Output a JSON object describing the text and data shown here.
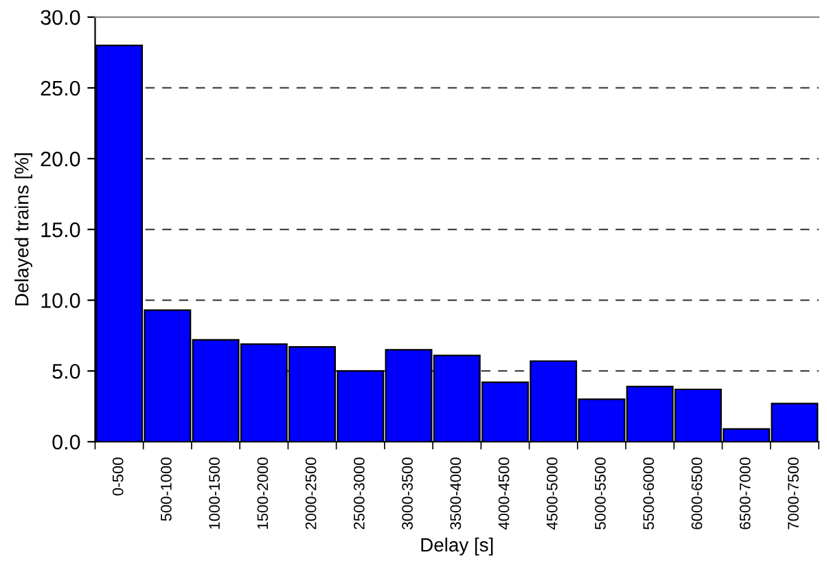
{
  "chart_data": {
    "type": "bar",
    "xlabel": "Delay [s]",
    "ylabel": "Delayed trains [%]",
    "categories": [
      "0-500",
      "500-1000",
      "1000-1500",
      "1500-2000",
      "2000-2500",
      "2500-3000",
      "3000-3500",
      "3500-4000",
      "4000-4500",
      "4500-5000",
      "5000-5500",
      "5500-6000",
      "6000-6500",
      "6500-7000",
      "7000-7500"
    ],
    "values": [
      28.0,
      9.3,
      7.2,
      6.9,
      6.7,
      5.0,
      6.5,
      6.1,
      4.2,
      5.7,
      3.0,
      3.9,
      3.7,
      0.9,
      2.7
    ],
    "color": "#0000ff",
    "ylim": [
      0,
      30
    ],
    "yticks": [
      {
        "value": 0,
        "label": "0.0"
      },
      {
        "value": 5,
        "label": "5.0"
      },
      {
        "value": 10,
        "label": "10.0"
      },
      {
        "value": 15,
        "label": "15.0"
      },
      {
        "value": 20,
        "label": "20.0"
      },
      {
        "value": 25,
        "label": "25.0"
      },
      {
        "value": 30,
        "label": "30.0"
      }
    ],
    "grid": "y",
    "line_style": "dashed"
  }
}
